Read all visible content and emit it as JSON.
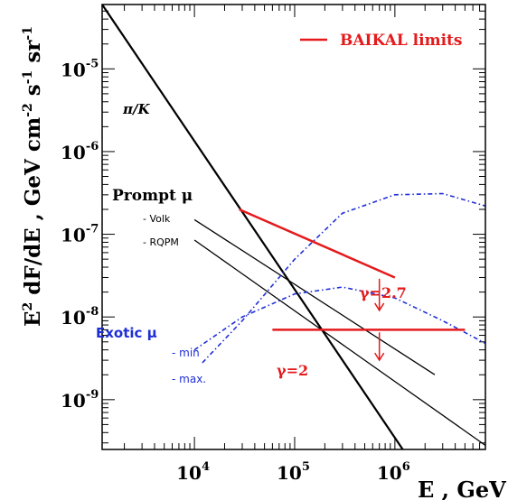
{
  "chart_data": {
    "type": "line",
    "x_scale": "log",
    "y_scale": "log",
    "x_label": "E , GeV",
    "y_label": "E2 dF/dE , GeV cm-2 s-1 sr-1",
    "x_label_parts": {
      "main": "E , GeV"
    },
    "y_label_parts": {
      "pre": "E",
      "sup1": "2",
      "mid": " dF/dE ,  GeV cm",
      "sup2": "-2",
      "mid2": " s",
      "sup3": "-1",
      "mid3": " sr",
      "sup4": "-1"
    },
    "x_ticks": [
      {
        "base": "10",
        "exp": "4",
        "value": 10000
      },
      {
        "base": "10",
        "exp": "5",
        "value": 100000
      },
      {
        "base": "10",
        "exp": "6",
        "value": 1000000
      }
    ],
    "y_ticks": [
      {
        "base": "10",
        "exp": "-5",
        "value": 1e-05
      },
      {
        "base": "10",
        "exp": "-6",
        "value": 1e-06
      },
      {
        "base": "10",
        "exp": "-7",
        "value": 1e-07
      },
      {
        "base": "10",
        "exp": "-8",
        "value": 1e-08
      },
      {
        "base": "10",
        "exp": "-9",
        "value": 1e-09
      }
    ],
    "xlim": [
      1200,
      8000000
    ],
    "ylim": [
      2.5e-10,
      6e-05
    ],
    "series": [
      {
        "key": "pik",
        "color": "#000000",
        "width": 2.2,
        "dash": "",
        "x": [
          1200,
          1200000
        ],
        "y": [
          6e-05,
          2.5e-10
        ]
      },
      {
        "key": "volk",
        "color": "#000000",
        "width": 1.3,
        "dash": "",
        "x": [
          10000,
          2500000
        ],
        "y": [
          1.5e-07,
          2e-09
        ]
      },
      {
        "key": "rqpm",
        "color": "#000000",
        "width": 1.3,
        "dash": "",
        "x": [
          10000,
          8000000
        ],
        "y": [
          8.5e-08,
          2.8e-10
        ]
      },
      {
        "key": "exotic_min",
        "color": "#1f2fd6",
        "width": 1.6,
        "dash": "5 3 1.5 3",
        "x": [
          10000,
          30000,
          100000,
          300000,
          1000000,
          3000000,
          8000000
        ],
        "y": [
          4e-09,
          1e-08,
          1.9e-08,
          2.3e-08,
          1.7e-08,
          9e-09,
          4.8e-09
        ]
      },
      {
        "key": "exotic_max",
        "color": "#1f2fd6",
        "width": 1.6,
        "dash": "5 3 1.5 3",
        "x": [
          12000,
          30000,
          100000,
          300000,
          1000000,
          3000000,
          8000000
        ],
        "y": [
          2.8e-09,
          9e-09,
          5e-08,
          1.8e-07,
          3e-07,
          3.1e-07,
          2.2e-07
        ]
      }
    ],
    "baikal_limits": [
      {
        "key": "gamma27",
        "x": [
          28000,
          1000000
        ],
        "y": [
          2e-07,
          3e-08
        ],
        "arrow_x": 700000,
        "arrow_y_from": 2.9e-08,
        "arrow_y_to": 1.2e-08
      },
      {
        "key": "gamma2",
        "x": [
          60000,
          5000000
        ],
        "y": [
          7e-09,
          7e-09
        ],
        "arrow_x": 700000,
        "arrow_y_from": 6.5e-09,
        "arrow_y_to": 3e-09
      }
    ],
    "legend": {
      "label": "BAIKAL limits",
      "color": "#e41a1c",
      "position": "top-right"
    },
    "labels": {
      "pik": "π/K",
      "prompt": "Prompt μ",
      "volk": "- Volk",
      "rqpm": "- RQPM",
      "exotic": "Exotic μ",
      "min": "- min",
      "max": "- max.",
      "gamma27": "γ=2.7",
      "gamma2": "γ=2"
    },
    "colors": {
      "red": "#e41a1c",
      "blue": "#1f2fd6",
      "black": "#000000"
    }
  }
}
